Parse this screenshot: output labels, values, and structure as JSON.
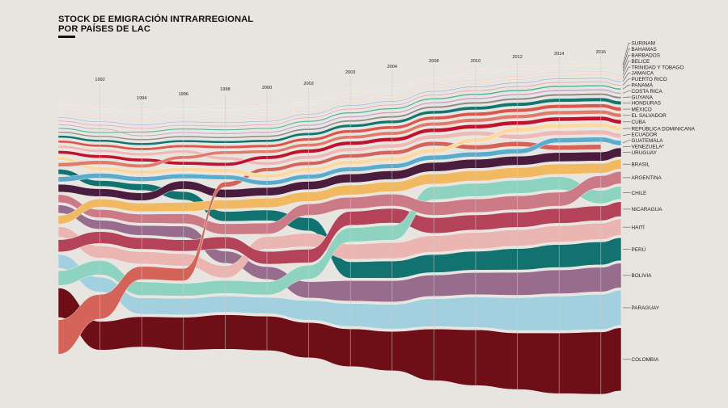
{
  "title": {
    "line1": "STOCK DE EMIGRACIÓN INTRARREGIONAL",
    "line2": "POR PAÍSES DE LAC"
  },
  "chart_data": {
    "type": "area",
    "subtype": "ranked stream chart (bands stacked by size, smallest on top)",
    "title": "STOCK DE EMIGRACIÓN INTRARREGIONAL POR PAÍSES DE LAC",
    "xlabel": "",
    "ylabel": "",
    "unit": "relative stock (estimated from band thickness, no axis shown)",
    "x": [
      null,
      "1992",
      "1994",
      "1996",
      "1998",
      "2000",
      "2002",
      "2003",
      "2004",
      "2008",
      "2010",
      "2012",
      "2014",
      "2016",
      null
    ],
    "grid": "vertical lines at labeled years",
    "legend": "direct labels on the right",
    "series": [
      {
        "name": "SURINAM",
        "color": "#e9c3c6",
        "values": [
          0.8,
          0.8,
          0.8,
          0.8,
          0.8,
          0.8,
          0.8,
          0.8,
          0.8,
          0.8,
          0.8,
          0.8,
          0.8,
          0.8,
          0.8
        ]
      },
      {
        "name": "BAHAMAS",
        "color": "#f1dbb2",
        "values": [
          0.8,
          0.8,
          0.8,
          0.8,
          0.8,
          0.8,
          0.8,
          0.8,
          0.8,
          0.8,
          0.9,
          0.9,
          0.9,
          0.9,
          0.9
        ]
      },
      {
        "name": "BARBADOS",
        "color": "#c7ddd4",
        "values": [
          0.9,
          0.9,
          0.9,
          0.9,
          0.9,
          0.9,
          0.9,
          0.9,
          0.9,
          0.9,
          1.0,
          1.0,
          1.0,
          1.0,
          1.0
        ]
      },
      {
        "name": "BELICE",
        "color": "#eec3bf",
        "values": [
          0.9,
          0.9,
          0.9,
          0.9,
          0.9,
          0.9,
          1.0,
          1.0,
          1.0,
          1.0,
          1.1,
          1.1,
          1.1,
          1.1,
          1.1
        ]
      },
      {
        "name": "TRINIDAD Y TOBAGO",
        "color": "#e6cfae",
        "values": [
          1.0,
          1.0,
          1.0,
          1.0,
          1.0,
          1.0,
          1.0,
          1.1,
          1.1,
          1.1,
          1.2,
          1.2,
          1.2,
          1.2,
          1.2
        ]
      },
      {
        "name": "JAMAICA",
        "color": "#9fb5d8",
        "values": [
          1.2,
          1.2,
          1.2,
          1.2,
          1.2,
          1.2,
          1.2,
          1.3,
          1.3,
          1.3,
          1.4,
          1.4,
          1.4,
          1.4,
          1.4
        ]
      },
      {
        "name": "PUERTO RICO",
        "color": "#e6a7b0",
        "values": [
          1.4,
          1.4,
          1.4,
          1.4,
          1.4,
          1.4,
          1.4,
          1.5,
          1.5,
          1.5,
          1.6,
          1.6,
          1.6,
          1.6,
          1.6
        ]
      },
      {
        "name": "PANAMÁ",
        "color": "#4fb396",
        "values": [
          1.6,
          1.6,
          1.6,
          1.6,
          1.6,
          1.6,
          1.7,
          1.8,
          1.8,
          1.9,
          2.0,
          2.0,
          2.0,
          2.0,
          2.0
        ]
      },
      {
        "name": "COSTA RICA",
        "color": "#c6a8c8",
        "values": [
          1.5,
          1.5,
          1.6,
          1.6,
          1.7,
          1.8,
          1.9,
          2.0,
          2.0,
          2.1,
          2.2,
          2.2,
          2.2,
          2.2,
          2.2
        ]
      },
      {
        "name": "GUYANA",
        "color": "#8c8c8c",
        "values": [
          1.8,
          1.8,
          1.9,
          2.0,
          2.0,
          2.1,
          2.2,
          2.3,
          2.4,
          2.5,
          2.6,
          2.6,
          2.6,
          2.6,
          2.6
        ]
      },
      {
        "name": "HONDURAS",
        "color": "#137570",
        "values": [
          3.0,
          3.0,
          3.0,
          3.0,
          3.0,
          3.2,
          3.4,
          3.6,
          3.8,
          4.0,
          4.2,
          4.4,
          4.5,
          4.5,
          4.5
        ]
      },
      {
        "name": "MÉXICO",
        "color": "#d9574d",
        "values": [
          3.2,
          3.2,
          3.3,
          3.4,
          3.5,
          3.6,
          3.8,
          4.0,
          4.1,
          4.2,
          4.4,
          4.5,
          4.6,
          4.6,
          4.6
        ]
      },
      {
        "name": "EL SALVADOR",
        "color": "#e07a6a",
        "values": [
          5.0,
          4.8,
          4.5,
          4.2,
          4.0,
          4.0,
          4.1,
          4.2,
          4.3,
          4.5,
          4.6,
          4.7,
          4.8,
          4.8,
          4.8
        ]
      },
      {
        "name": "CUBA",
        "color": "#c0132e",
        "values": [
          4.0,
          4.0,
          4.1,
          4.2,
          4.3,
          4.4,
          4.6,
          4.7,
          4.8,
          4.9,
          5.0,
          5.0,
          5.0,
          5.0,
          5.0
        ]
      },
      {
        "name": "REPÚBLICA DOMINICANA",
        "color": "#fcd9a0",
        "values": [
          4.8,
          4.8,
          4.9,
          5.0,
          5.0,
          5.1,
          5.2,
          5.3,
          5.4,
          5.5,
          5.6,
          5.6,
          5.6,
          5.6,
          5.6
        ]
      },
      {
        "name": "ECUADOR",
        "color": "#efbab5",
        "values": [
          3.5,
          3.6,
          3.8,
          4.0,
          4.2,
          4.4,
          4.6,
          4.8,
          5.0,
          5.3,
          5.5,
          5.7,
          5.8,
          5.8,
          5.8
        ]
      },
      {
        "name": "GUATEMALA",
        "color": "#5aaccc",
        "values": [
          6.3,
          6.0,
          5.8,
          5.6,
          5.5,
          5.5,
          5.5,
          5.5,
          5.6,
          5.8,
          5.9,
          6.0,
          6.0,
          6.0,
          6.0
        ]
      },
      {
        "name": "VENEZUELA*",
        "color": "#d4645a",
        "values": [
          42,
          30,
          16,
          15.2,
          6.2,
          4.7,
          4.6,
          4.8,
          5.0,
          5.3,
          5.6,
          5.9,
          6.1,
          6.2,
          null
        ]
      },
      {
        "name": "URUGUAY",
        "color": "#4a1d3f",
        "values": [
          9.5,
          9.5,
          9.5,
          10,
          10,
          10,
          10,
          10.5,
          10.5,
          11,
          11,
          11,
          11,
          11,
          11
        ]
      },
      {
        "name": "BRASIL",
        "color": "#f0b962",
        "values": [
          10.5,
          10,
          10.5,
          11,
          11,
          11.5,
          11.5,
          12,
          12,
          12.5,
          12.5,
          12.5,
          12.5,
          12,
          12
        ]
      },
      {
        "name": "ARGENTINA",
        "color": "#cc7a85",
        "values": [
          9.8,
          10,
          11,
          12,
          13,
          13.5,
          14,
          14.2,
          14.5,
          16.2,
          16.5,
          17,
          17,
          15,
          15
        ]
      },
      {
        "name": "CHILE",
        "color": "#8ed3c0",
        "values": [
          18,
          17.5,
          16.5,
          15.5,
          16,
          16,
          17,
          17.2,
          18,
          16,
          16,
          16,
          16,
          16,
          16
        ]
      },
      {
        "name": "NICARAGUA",
        "color": "#b4435a",
        "values": [
          15,
          14.5,
          14,
          14,
          14.5,
          15.5,
          16.6,
          17,
          17.8,
          19,
          18.5,
          18.5,
          18,
          18,
          18
        ]
      },
      {
        "name": "HAITÍ",
        "color": "#ebb5b2",
        "values": [
          13,
          14.8,
          15,
          15,
          15,
          15.2,
          16.5,
          18.5,
          19.5,
          20,
          20,
          20,
          20,
          20,
          20
        ]
      },
      {
        "name": "PERÚ",
        "color": "#127270",
        "values": [
          6.2,
          7,
          8,
          10.2,
          12,
          13,
          16,
          20,
          21,
          22,
          23,
          26,
          28,
          28,
          28
        ]
      },
      {
        "name": "BOLIVIA",
        "color": "#986c8c",
        "values": [
          10,
          11,
          12,
          13.8,
          14.8,
          15.6,
          20,
          25,
          26,
          26,
          27,
          28,
          29,
          30,
          30
        ]
      },
      {
        "name": "PARAGUAY",
        "color": "#a2d0de",
        "values": [
          17,
          18,
          20,
          20,
          20,
          20,
          24,
          28,
          30,
          34,
          37,
          40,
          42,
          43,
          43
        ]
      },
      {
        "name": "COLOMBIA",
        "color": "#6e0f18",
        "values": [
          36,
          35,
          37,
          40,
          42,
          42,
          43,
          46,
          48,
          63,
          68,
          69,
          74,
          76,
          77
        ]
      }
    ]
  }
}
